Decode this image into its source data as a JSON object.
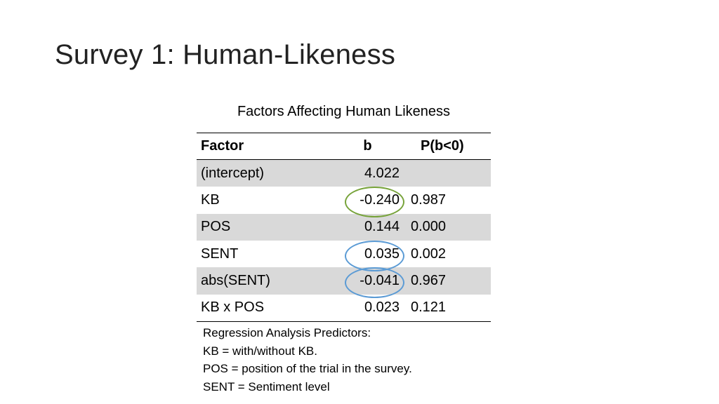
{
  "slide": {
    "title": "Survey 1: Human-Likeness"
  },
  "table": {
    "caption": "Factors Affecting Human Likeness",
    "headers": {
      "factor": "Factor",
      "b": "b",
      "p": "P(b<0)"
    },
    "rows": [
      {
        "factor": "(intercept)",
        "b": "4.022",
        "p": ""
      },
      {
        "factor": "KB",
        "b": "-0.240",
        "p": "0.987"
      },
      {
        "factor": "POS",
        "b": "0.144",
        "p": "0.000"
      },
      {
        "factor": "SENT",
        "b": "0.035",
        "p": "0.002"
      },
      {
        "factor": "abs(SENT)",
        "b": "-0.041",
        "p": "0.967"
      },
      {
        "factor": "KB x POS",
        "b": "0.023",
        "p": "0.121"
      }
    ],
    "shaded_row_color": "#d9d9d9"
  },
  "highlights": {
    "green": "#77a33a",
    "blue": "#5b9bd5"
  },
  "notes": [
    "Regression Analysis Predictors:",
    "KB = with/without KB.",
    "POS = position of the trial in the survey.",
    "SENT = Sentiment level"
  ]
}
